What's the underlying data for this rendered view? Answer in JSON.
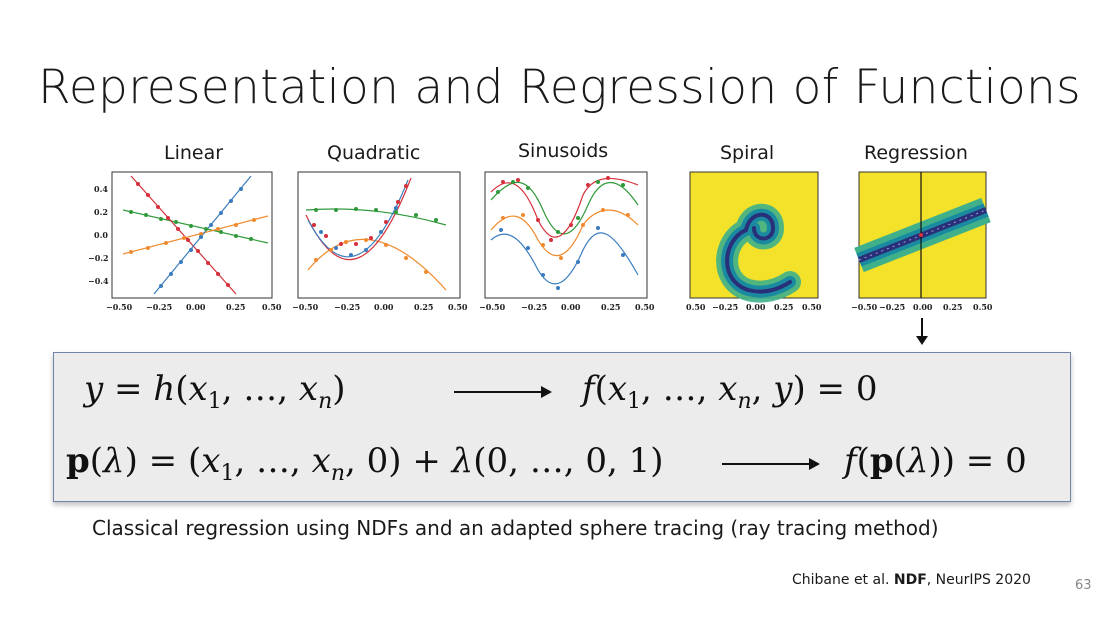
{
  "slide": {
    "title": "Representation and Regression of Functions",
    "panels": [
      {
        "label": "Linear"
      },
      {
        "label": "Quadratic"
      },
      {
        "label": "Sinusoids"
      },
      {
        "label": "Spiral"
      },
      {
        "label": "Regression"
      }
    ],
    "x_ticks": [
      "−0.50",
      "−0.25",
      "0.00",
      "0.25",
      "0.50"
    ],
    "spiral_x_ticks": [
      "0.50",
      "−0.25",
      "0.00",
      "0.25",
      "0.50"
    ],
    "y_ticks": [
      "0.4",
      "0.2",
      "0.0",
      "−0.2",
      "−0.4"
    ],
    "equation_box": {
      "eq1_left": "y = h(x₁, …, xₙ)",
      "eq1_right": "f(x₁, …, xₙ, y) = 0",
      "eq2_left": "p(λ) = (x₁, …, xₙ, 0) + λ(0, …, 0, 1)",
      "eq2_right": "f(p(λ)) = 0"
    },
    "caption": "Classical regression using NDFs and an adapted sphere tracing (ray tracing method)",
    "citation": {
      "authors": "Chibane et al.",
      "paper": "NDF",
      "venue": ", NeurIPS 2020"
    },
    "page_number": "63",
    "colors": {
      "blue": "#3a7dbf",
      "orange": "#f08a2e",
      "green": "#2f9a3a",
      "red": "#d6303a",
      "yellow": "#f4e22a",
      "navy": "#2a2f7a",
      "teal": "#1fa89a"
    }
  }
}
